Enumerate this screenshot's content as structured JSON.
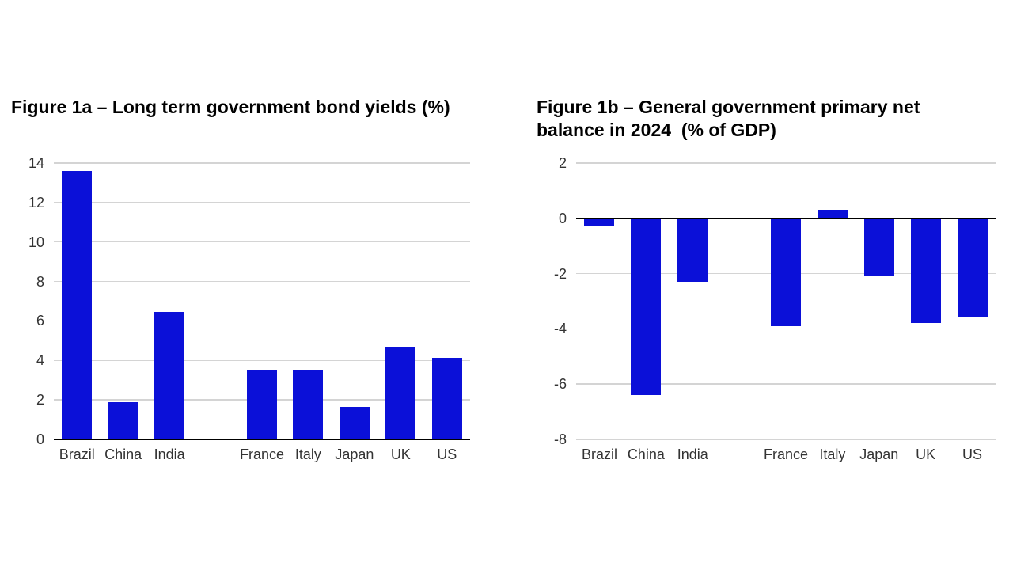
{
  "figure": {
    "fig1a_title": "Figure 1a – Long term government bond yields (%)",
    "fig1b_title": "Figure 1b – General government primary net\nbalance in 2024  (% of GDP)"
  },
  "chart_data": [
    {
      "type": "bar",
      "title": "Figure 1a – Long term government bond yields (%)",
      "categories": [
        "Brazil",
        "China",
        "India",
        "France",
        "Italy",
        "Japan",
        "UK",
        "US"
      ],
      "values": [
        13.6,
        1.9,
        6.45,
        3.55,
        3.55,
        1.65,
        4.7,
        4.15
      ],
      "slot_indices": [
        0,
        1,
        2,
        4,
        5,
        6,
        7,
        8
      ],
      "num_slots": 9,
      "xlabel": "",
      "ylabel": "",
      "ylim": [
        0,
        14
      ],
      "yticks": [
        0,
        2,
        4,
        6,
        8,
        10,
        12,
        14
      ],
      "grid": true,
      "legend": "none",
      "bar_color": "#0b10d8"
    },
    {
      "type": "bar",
      "title": "Figure 1b – General government primary net balance in 2024 (% of GDP)",
      "categories": [
        "Brazil",
        "China",
        "India",
        "France",
        "Italy",
        "Japan",
        "UK",
        "US"
      ],
      "values": [
        -0.3,
        -6.4,
        -2.3,
        -3.9,
        0.3,
        -2.1,
        -3.8,
        -3.6
      ],
      "slot_indices": [
        0,
        1,
        2,
        4,
        5,
        6,
        7,
        8
      ],
      "num_slots": 9,
      "xlabel": "",
      "ylabel": "",
      "ylim": [
        -8,
        2
      ],
      "yticks": [
        2,
        0,
        -2,
        -4,
        -6,
        -8
      ],
      "grid": true,
      "legend": "none",
      "bar_color": "#0b10d8"
    }
  ],
  "colors": {
    "bar": "#0b10d8",
    "gridline": "#d4d4d4",
    "zero_axis": "#000000",
    "tick_text": "#333333",
    "title_text": "#000000"
  }
}
